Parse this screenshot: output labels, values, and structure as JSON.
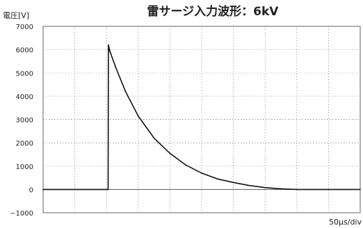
{
  "chart_data": {
    "type": "line",
    "title": "雷サージ入力波形：6kV",
    "ylabel": "電圧[V]",
    "x_unit_label": "50μs/div",
    "ylim": [
      -1000,
      7000
    ],
    "yticks": [
      -1000,
      0,
      1000,
      2000,
      3000,
      4000,
      5000,
      6000,
      7000
    ],
    "ytick_labels": [
      "−1000",
      "0",
      "1000",
      "2000",
      "3000",
      "4000",
      "5000",
      "6000",
      "7000"
    ],
    "x_divisions": 10,
    "grid": true,
    "series": [
      {
        "color": "#111111",
        "x_div": [
          0.0,
          2.05,
          2.06,
          2.1,
          2.3,
          2.6,
          3.0,
          3.5,
          4.0,
          4.5,
          5.0,
          5.5,
          6.0,
          6.5,
          7.0,
          7.5,
          8.0,
          8.5,
          9.0,
          10.0
        ],
        "values": [
          0,
          0,
          6200,
          5950,
          5200,
          4200,
          3150,
          2200,
          1550,
          1050,
          700,
          450,
          300,
          170,
          80,
          30,
          0,
          0,
          0,
          0
        ]
      }
    ]
  }
}
